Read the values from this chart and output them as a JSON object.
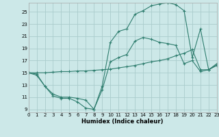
{
  "xlabel": "Humidex (Indice chaleur)",
  "bg_color": "#cce8e8",
  "grid_color": "#aacccc",
  "line_color": "#2e7d6e",
  "xlim": [
    0,
    23
  ],
  "ylim": [
    8.5,
    26.5
  ],
  "xticks": [
    0,
    1,
    2,
    3,
    4,
    5,
    6,
    7,
    8,
    9,
    10,
    11,
    12,
    13,
    14,
    15,
    16,
    17,
    18,
    19,
    20,
    21,
    22,
    23
  ],
  "yticks": [
    9,
    11,
    13,
    15,
    17,
    19,
    21,
    23,
    25
  ],
  "line1_x": [
    0,
    1,
    2,
    3,
    4,
    5,
    6,
    7,
    8,
    9,
    10,
    11,
    12,
    13,
    14,
    15,
    16,
    17,
    18,
    19,
    20,
    21,
    22,
    23
  ],
  "line1_y": [
    15.0,
    14.6,
    12.8,
    11.2,
    10.8,
    10.8,
    10.2,
    9.2,
    9.0,
    12.2,
    16.8,
    17.5,
    18.0,
    20.2,
    20.8,
    20.5,
    20.0,
    19.8,
    19.5,
    16.5,
    17.0,
    15.2,
    15.5,
    16.2
  ],
  "line2_x": [
    0,
    1,
    2,
    3,
    4,
    5,
    6,
    7,
    8,
    9,
    10,
    11,
    12,
    13,
    14,
    15,
    16,
    17,
    18,
    19,
    20,
    21,
    22,
    23
  ],
  "line2_y": [
    15.0,
    14.8,
    12.8,
    11.5,
    11.0,
    11.0,
    10.8,
    10.5,
    9.0,
    12.8,
    20.0,
    21.8,
    22.2,
    24.6,
    25.2,
    26.0,
    26.3,
    26.5,
    26.2,
    25.2,
    17.5,
    22.2,
    15.5,
    16.5
  ],
  "line3_x": [
    0,
    1,
    2,
    3,
    4,
    5,
    6,
    7,
    8,
    9,
    10,
    11,
    12,
    13,
    14,
    15,
    16,
    17,
    18,
    19,
    20,
    21,
    22,
    23
  ],
  "line3_y": [
    15.0,
    15.0,
    15.0,
    15.1,
    15.2,
    15.2,
    15.3,
    15.3,
    15.4,
    15.5,
    15.6,
    15.8,
    16.0,
    16.2,
    16.5,
    16.8,
    17.0,
    17.3,
    17.8,
    18.2,
    18.8,
    15.5,
    15.5,
    16.3
  ]
}
